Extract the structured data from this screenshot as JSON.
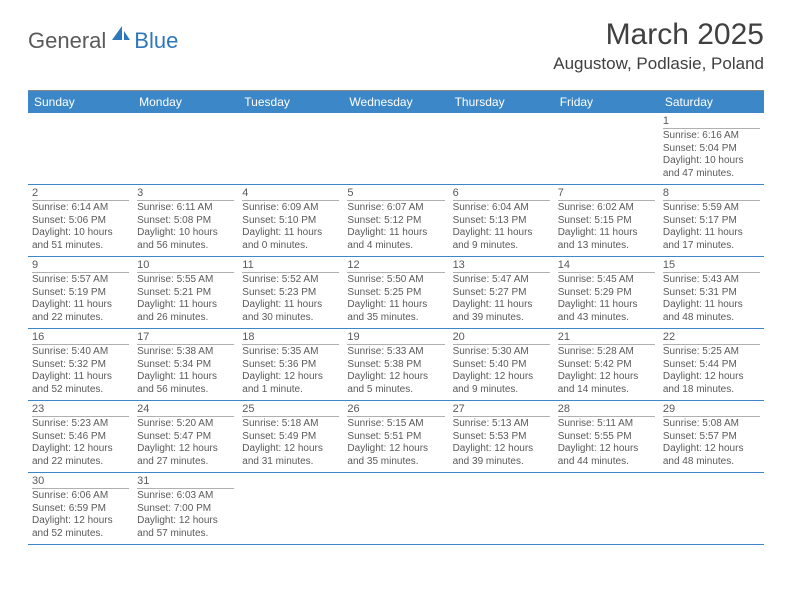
{
  "logo": {
    "dark": "General",
    "blue": "Blue"
  },
  "title": "March 2025",
  "location": "Augustow, Podlasie, Poland",
  "colors": {
    "header_bg": "#3c87c7",
    "header_text": "#ffffff",
    "text": "#5a5a5a",
    "divider": "#b0b0b0",
    "week_border": "#3c87c7"
  },
  "dayNames": [
    "Sunday",
    "Monday",
    "Tuesday",
    "Wednesday",
    "Thursday",
    "Friday",
    "Saturday"
  ],
  "weeks": [
    [
      null,
      null,
      null,
      null,
      null,
      null,
      {
        "n": "1",
        "sr": "6:16 AM",
        "ss": "5:04 PM",
        "dl": "10 hours and 47 minutes."
      }
    ],
    [
      {
        "n": "2",
        "sr": "6:14 AM",
        "ss": "5:06 PM",
        "dl": "10 hours and 51 minutes."
      },
      {
        "n": "3",
        "sr": "6:11 AM",
        "ss": "5:08 PM",
        "dl": "10 hours and 56 minutes."
      },
      {
        "n": "4",
        "sr": "6:09 AM",
        "ss": "5:10 PM",
        "dl": "11 hours and 0 minutes."
      },
      {
        "n": "5",
        "sr": "6:07 AM",
        "ss": "5:12 PM",
        "dl": "11 hours and 4 minutes."
      },
      {
        "n": "6",
        "sr": "6:04 AM",
        "ss": "5:13 PM",
        "dl": "11 hours and 9 minutes."
      },
      {
        "n": "7",
        "sr": "6:02 AM",
        "ss": "5:15 PM",
        "dl": "11 hours and 13 minutes."
      },
      {
        "n": "8",
        "sr": "5:59 AM",
        "ss": "5:17 PM",
        "dl": "11 hours and 17 minutes."
      }
    ],
    [
      {
        "n": "9",
        "sr": "5:57 AM",
        "ss": "5:19 PM",
        "dl": "11 hours and 22 minutes."
      },
      {
        "n": "10",
        "sr": "5:55 AM",
        "ss": "5:21 PM",
        "dl": "11 hours and 26 minutes."
      },
      {
        "n": "11",
        "sr": "5:52 AM",
        "ss": "5:23 PM",
        "dl": "11 hours and 30 minutes."
      },
      {
        "n": "12",
        "sr": "5:50 AM",
        "ss": "5:25 PM",
        "dl": "11 hours and 35 minutes."
      },
      {
        "n": "13",
        "sr": "5:47 AM",
        "ss": "5:27 PM",
        "dl": "11 hours and 39 minutes."
      },
      {
        "n": "14",
        "sr": "5:45 AM",
        "ss": "5:29 PM",
        "dl": "11 hours and 43 minutes."
      },
      {
        "n": "15",
        "sr": "5:43 AM",
        "ss": "5:31 PM",
        "dl": "11 hours and 48 minutes."
      }
    ],
    [
      {
        "n": "16",
        "sr": "5:40 AM",
        "ss": "5:32 PM",
        "dl": "11 hours and 52 minutes."
      },
      {
        "n": "17",
        "sr": "5:38 AM",
        "ss": "5:34 PM",
        "dl": "11 hours and 56 minutes."
      },
      {
        "n": "18",
        "sr": "5:35 AM",
        "ss": "5:36 PM",
        "dl": "12 hours and 1 minute."
      },
      {
        "n": "19",
        "sr": "5:33 AM",
        "ss": "5:38 PM",
        "dl": "12 hours and 5 minutes."
      },
      {
        "n": "20",
        "sr": "5:30 AM",
        "ss": "5:40 PM",
        "dl": "12 hours and 9 minutes."
      },
      {
        "n": "21",
        "sr": "5:28 AM",
        "ss": "5:42 PM",
        "dl": "12 hours and 14 minutes."
      },
      {
        "n": "22",
        "sr": "5:25 AM",
        "ss": "5:44 PM",
        "dl": "12 hours and 18 minutes."
      }
    ],
    [
      {
        "n": "23",
        "sr": "5:23 AM",
        "ss": "5:46 PM",
        "dl": "12 hours and 22 minutes."
      },
      {
        "n": "24",
        "sr": "5:20 AM",
        "ss": "5:47 PM",
        "dl": "12 hours and 27 minutes."
      },
      {
        "n": "25",
        "sr": "5:18 AM",
        "ss": "5:49 PM",
        "dl": "12 hours and 31 minutes."
      },
      {
        "n": "26",
        "sr": "5:15 AM",
        "ss": "5:51 PM",
        "dl": "12 hours and 35 minutes."
      },
      {
        "n": "27",
        "sr": "5:13 AM",
        "ss": "5:53 PM",
        "dl": "12 hours and 39 minutes."
      },
      {
        "n": "28",
        "sr": "5:11 AM",
        "ss": "5:55 PM",
        "dl": "12 hours and 44 minutes."
      },
      {
        "n": "29",
        "sr": "5:08 AM",
        "ss": "5:57 PM",
        "dl": "12 hours and 48 minutes."
      }
    ],
    [
      {
        "n": "30",
        "sr": "6:06 AM",
        "ss": "6:59 PM",
        "dl": "12 hours and 52 minutes."
      },
      {
        "n": "31",
        "sr": "6:03 AM",
        "ss": "7:00 PM",
        "dl": "12 hours and 57 minutes."
      },
      null,
      null,
      null,
      null,
      null
    ]
  ],
  "labels": {
    "sunrise": "Sunrise:",
    "sunset": "Sunset:",
    "daylight": "Daylight:"
  }
}
